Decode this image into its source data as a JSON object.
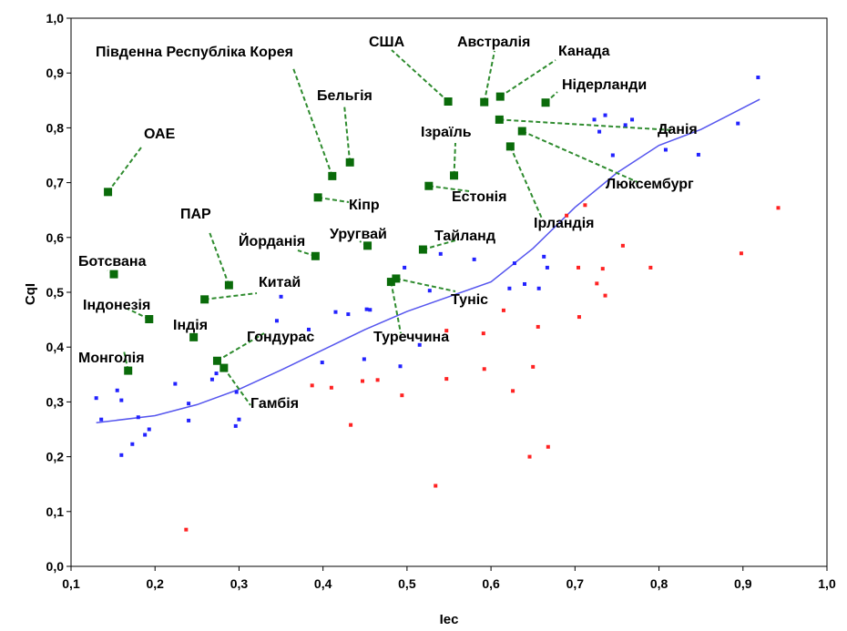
{
  "chart_data": {
    "type": "scatter",
    "xlabel": "Iec",
    "ylabel": "CqI",
    "xlim": [
      0.1,
      1.0
    ],
    "ylim": [
      0.0,
      1.0
    ],
    "x_ticks": [
      "0,1",
      "0,2",
      "0,3",
      "0,4",
      "0,5",
      "0,6",
      "0,7",
      "0,8",
      "0,9",
      "1,0"
    ],
    "y_ticks": [
      "0,0",
      "0,1",
      "0,2",
      "0,3",
      "0,4",
      "0,5",
      "0,6",
      "0,7",
      "0,8",
      "0,9",
      "1,0"
    ],
    "grid": false,
    "colors": {
      "blue": "#2222ff",
      "red": "#ff2222",
      "green": "#0a6b0a",
      "fit": "#5555ee",
      "leader": "#2e8b2e"
    },
    "labeled_countries": [
      {
        "name": "ОАЕ",
        "x": 0.144,
        "y": 0.683
      },
      {
        "name": "Ботсвана",
        "x": 0.151,
        "y": 0.533
      },
      {
        "name": "Індонезія",
        "x": 0.193,
        "y": 0.451
      },
      {
        "name": "Монголія",
        "x": 0.168,
        "y": 0.357
      },
      {
        "name": "Індія",
        "x": 0.246,
        "y": 0.418
      },
      {
        "name": "ПАР",
        "x": 0.288,
        "y": 0.513
      },
      {
        "name": "Китай",
        "x": 0.259,
        "y": 0.487
      },
      {
        "name": "Гондурас",
        "x": 0.274,
        "y": 0.375
      },
      {
        "name": "Гамбія",
        "x": 0.282,
        "y": 0.362
      },
      {
        "name": "Південна Республіка Корея",
        "x": 0.411,
        "y": 0.712
      },
      {
        "name": "Бельгія",
        "x": 0.432,
        "y": 0.737
      },
      {
        "name": "Кіпр",
        "x": 0.394,
        "y": 0.673
      },
      {
        "name": "Йорданія",
        "x": 0.391,
        "y": 0.566
      },
      {
        "name": "Уругвай",
        "x": 0.453,
        "y": 0.585
      },
      {
        "name": "США",
        "x": 0.549,
        "y": 0.848
      },
      {
        "name": "Ізраїль",
        "x": 0.556,
        "y": 0.713
      },
      {
        "name": "Естонія",
        "x": 0.526,
        "y": 0.694
      },
      {
        "name": "Тайланд",
        "x": 0.519,
        "y": 0.578
      },
      {
        "name": "Туніс",
        "x": 0.487,
        "y": 0.525
      },
      {
        "name": "Туреччина",
        "x": 0.481,
        "y": 0.519
      },
      {
        "name": "Австралія",
        "x": 0.592,
        "y": 0.847
      },
      {
        "name": "Канада",
        "x": 0.611,
        "y": 0.857
      },
      {
        "name": "Нідерланди",
        "x": 0.665,
        "y": 0.846
      },
      {
        "name": "Данія",
        "x": 0.61,
        "y": 0.815
      },
      {
        "name": "Люксембург",
        "x": 0.637,
        "y": 0.794
      },
      {
        "name": "Ірландія",
        "x": 0.623,
        "y": 0.766
      }
    ],
    "blue_points": [
      {
        "x": 0.13,
        "y": 0.307
      },
      {
        "x": 0.136,
        "y": 0.268
      },
      {
        "x": 0.155,
        "y": 0.321
      },
      {
        "x": 0.16,
        "y": 0.303
      },
      {
        "x": 0.16,
        "y": 0.203
      },
      {
        "x": 0.173,
        "y": 0.223
      },
      {
        "x": 0.18,
        "y": 0.272
      },
      {
        "x": 0.188,
        "y": 0.24
      },
      {
        "x": 0.193,
        "y": 0.25
      },
      {
        "x": 0.224,
        "y": 0.333
      },
      {
        "x": 0.24,
        "y": 0.266
      },
      {
        "x": 0.24,
        "y": 0.297
      },
      {
        "x": 0.268,
        "y": 0.341
      },
      {
        "x": 0.273,
        "y": 0.352
      },
      {
        "x": 0.296,
        "y": 0.256
      },
      {
        "x": 0.297,
        "y": 0.318
      },
      {
        "x": 0.3,
        "y": 0.268
      },
      {
        "x": 0.345,
        "y": 0.448
      },
      {
        "x": 0.35,
        "y": 0.492
      },
      {
        "x": 0.383,
        "y": 0.432
      },
      {
        "x": 0.399,
        "y": 0.372
      },
      {
        "x": 0.415,
        "y": 0.464
      },
      {
        "x": 0.43,
        "y": 0.46
      },
      {
        "x": 0.449,
        "y": 0.378
      },
      {
        "x": 0.452,
        "y": 0.469
      },
      {
        "x": 0.456,
        "y": 0.468
      },
      {
        "x": 0.492,
        "y": 0.365
      },
      {
        "x": 0.497,
        "y": 0.545
      },
      {
        "x": 0.515,
        "y": 0.404
      },
      {
        "x": 0.527,
        "y": 0.503
      },
      {
        "x": 0.54,
        "y": 0.57
      },
      {
        "x": 0.58,
        "y": 0.56
      },
      {
        "x": 0.622,
        "y": 0.507
      },
      {
        "x": 0.628,
        "y": 0.553
      },
      {
        "x": 0.64,
        "y": 0.515
      },
      {
        "x": 0.657,
        "y": 0.507
      },
      {
        "x": 0.663,
        "y": 0.565
      },
      {
        "x": 0.667,
        "y": 0.545
      },
      {
        "x": 0.723,
        "y": 0.815
      },
      {
        "x": 0.729,
        "y": 0.793
      },
      {
        "x": 0.736,
        "y": 0.823
      },
      {
        "x": 0.745,
        "y": 0.75
      },
      {
        "x": 0.76,
        "y": 0.805
      },
      {
        "x": 0.768,
        "y": 0.815
      },
      {
        "x": 0.808,
        "y": 0.76
      },
      {
        "x": 0.847,
        "y": 0.751
      },
      {
        "x": 0.894,
        "y": 0.808
      },
      {
        "x": 0.918,
        "y": 0.892
      }
    ],
    "red_points": [
      {
        "x": 0.237,
        "y": 0.067
      },
      {
        "x": 0.387,
        "y": 0.33
      },
      {
        "x": 0.41,
        "y": 0.326
      },
      {
        "x": 0.433,
        "y": 0.258
      },
      {
        "x": 0.447,
        "y": 0.338
      },
      {
        "x": 0.465,
        "y": 0.34
      },
      {
        "x": 0.494,
        "y": 0.312
      },
      {
        "x": 0.534,
        "y": 0.147
      },
      {
        "x": 0.547,
        "y": 0.342
      },
      {
        "x": 0.547,
        "y": 0.43
      },
      {
        "x": 0.591,
        "y": 0.425
      },
      {
        "x": 0.592,
        "y": 0.36
      },
      {
        "x": 0.615,
        "y": 0.467
      },
      {
        "x": 0.626,
        "y": 0.32
      },
      {
        "x": 0.646,
        "y": 0.2
      },
      {
        "x": 0.65,
        "y": 0.364
      },
      {
        "x": 0.656,
        "y": 0.437
      },
      {
        "x": 0.668,
        "y": 0.218
      },
      {
        "x": 0.69,
        "y": 0.64
      },
      {
        "x": 0.704,
        "y": 0.545
      },
      {
        "x": 0.705,
        "y": 0.455
      },
      {
        "x": 0.712,
        "y": 0.659
      },
      {
        "x": 0.726,
        "y": 0.516
      },
      {
        "x": 0.733,
        "y": 0.543
      },
      {
        "x": 0.736,
        "y": 0.494
      },
      {
        "x": 0.757,
        "y": 0.585
      },
      {
        "x": 0.79,
        "y": 0.545
      },
      {
        "x": 0.898,
        "y": 0.571
      },
      {
        "x": 0.942,
        "y": 0.654
      }
    ],
    "trend_line": [
      {
        "x": 0.13,
        "y": 0.262
      },
      {
        "x": 0.2,
        "y": 0.275
      },
      {
        "x": 0.25,
        "y": 0.295
      },
      {
        "x": 0.3,
        "y": 0.323
      },
      {
        "x": 0.35,
        "y": 0.358
      },
      {
        "x": 0.4,
        "y": 0.395
      },
      {
        "x": 0.45,
        "y": 0.432
      },
      {
        "x": 0.5,
        "y": 0.465
      },
      {
        "x": 0.55,
        "y": 0.492
      },
      {
        "x": 0.6,
        "y": 0.519
      },
      {
        "x": 0.65,
        "y": 0.58
      },
      {
        "x": 0.7,
        "y": 0.655
      },
      {
        "x": 0.75,
        "y": 0.718
      },
      {
        "x": 0.8,
        "y": 0.768
      },
      {
        "x": 0.85,
        "y": 0.797
      },
      {
        "x": 0.92,
        "y": 0.852
      }
    ]
  }
}
